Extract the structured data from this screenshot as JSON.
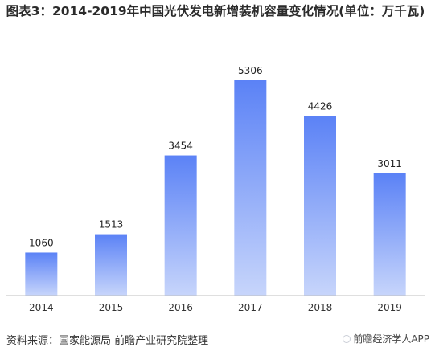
{
  "title": "图表3：2014-2019年中国光伏发电新增装机容量变化情况(单位：万千瓦)",
  "source": "资料来源：国家能源局 前瞻产业研究院整理",
  "brand": "前瞻经济学人APP",
  "colors": {
    "bar_top": "#5b82f6",
    "bar_bottom": "#c7d5fb",
    "axis": "#bfbfbf"
  },
  "chart_data": {
    "type": "bar",
    "title": "图表3：2014-2019年中国光伏发电新增装机容量变化情况(单位：万千瓦)",
    "categories": [
      "2014",
      "2015",
      "2016",
      "2017",
      "2018",
      "2019"
    ],
    "values": [
      1060,
      1513,
      3454,
      5306,
      4426,
      3011
    ],
    "ylim": [
      0,
      5500
    ],
    "grid": false,
    "legend": "none"
  }
}
